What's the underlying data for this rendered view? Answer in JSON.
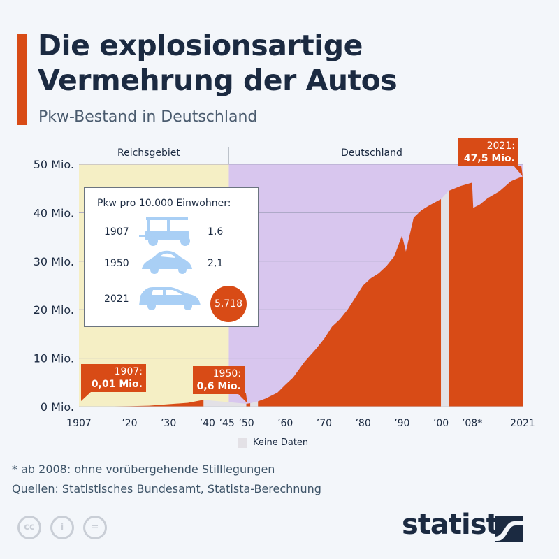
{
  "header": {
    "title_line1": "Die explosionsartige",
    "title_line2": "Vermehrung der Autos",
    "subtitle": "Pkw-Bestand in Deutschland"
  },
  "regions": {
    "left": "Reichsgebiet",
    "right": "Deutschland"
  },
  "callouts": {
    "c1907": {
      "year": "1907:",
      "value": "0,01 Mio."
    },
    "c1950": {
      "year": "1950:",
      "value": "0,6 Mio."
    },
    "c2021": {
      "year": "2021:",
      "value": "47,5 Mio."
    }
  },
  "inset": {
    "title": "Pkw pro 10.000 Einwohner:",
    "rows": [
      {
        "year": "1907",
        "value": "1,6"
      },
      {
        "year": "1950",
        "value": "2,1"
      },
      {
        "year": "2021",
        "value": "5.718"
      }
    ]
  },
  "legend": {
    "no_data": "Keine Daten"
  },
  "footnote": "* ab 2008: ohne vorübergehende Stilllegungen",
  "source": "Quellen: Statistisches Bundesamt, Statista-Berechnung",
  "brand": "statista",
  "colors": {
    "area": "#d84b16",
    "reichsgebiet_bg": "#f5efc5",
    "deutschland_bg": "#d8c6ee",
    "no_data": "#e3e1e6",
    "car_icon": "#a9cff5",
    "title": "#1b2a41"
  },
  "chart_data": {
    "type": "area",
    "ylabel": "",
    "xlabel": "",
    "ylim": [
      0,
      50
    ],
    "xlim": [
      1907,
      2021
    ],
    "grid": true,
    "y_ticks": [
      {
        "value": 0,
        "label": "0 Mio."
      },
      {
        "value": 10,
        "label": "10 Mio."
      },
      {
        "value": 20,
        "label": "20 Mio."
      },
      {
        "value": 30,
        "label": "30 Mio."
      },
      {
        "value": 40,
        "label": "40 Mio."
      },
      {
        "value": 50,
        "label": "50 Mio."
      }
    ],
    "x_ticks": [
      {
        "value": 1907,
        "label": "1907"
      },
      {
        "value": 1920,
        "label": "’20"
      },
      {
        "value": 1930,
        "label": "’30"
      },
      {
        "value": 1940,
        "label": "’40"
      },
      {
        "value": 1945,
        "label": "’45"
      },
      {
        "value": 1950,
        "label": "’50"
      },
      {
        "value": 1960,
        "label": "’60"
      },
      {
        "value": 1970,
        "label": "’70"
      },
      {
        "value": 1980,
        "label": "’80"
      },
      {
        "value": 1990,
        "label": "’90"
      },
      {
        "value": 2000,
        "label": "’00"
      },
      {
        "value": 2008,
        "label": "’08*"
      },
      {
        "value": 2021,
        "label": "2021"
      }
    ],
    "region_split_year": 1945.5,
    "segments": [
      {
        "x": [
          1907,
          1914,
          1920,
          1925,
          1930,
          1935,
          1939
        ],
        "y": [
          0.01,
          0.05,
          0.1,
          0.2,
          0.5,
          0.8,
          1.4
        ]
      },
      {
        "x": [
          1950,
          1951
        ],
        "y": [
          0.6,
          0.7
        ]
      },
      {
        "x": [
          1953,
          1955,
          1958,
          1960,
          1962,
          1965,
          1968,
          1970,
          1972,
          1974,
          1976,
          1978,
          1980,
          1982,
          1984,
          1986,
          1988,
          1990,
          1991,
          1993,
          1995,
          1997,
          2000
        ],
        "y": [
          1.1,
          1.7,
          2.9,
          4.5,
          6.0,
          9.3,
          12.0,
          14.0,
          16.5,
          18.0,
          20.0,
          22.5,
          25.0,
          26.5,
          27.5,
          29.0,
          31.0,
          35.3,
          32.0,
          39.0,
          40.5,
          41.5,
          42.8
        ]
      },
      {
        "x": [
          2002,
          2005,
          2008,
          2008.3,
          2010,
          2012,
          2015,
          2018,
          2021
        ],
        "y": [
          44.5,
          45.5,
          46.2,
          41.0,
          41.7,
          43.0,
          44.4,
          46.5,
          47.5
        ]
      }
    ],
    "no_data_ranges": [
      [
        1939,
        1950
      ],
      [
        1951,
        1953
      ],
      [
        2000,
        2002
      ]
    ]
  }
}
